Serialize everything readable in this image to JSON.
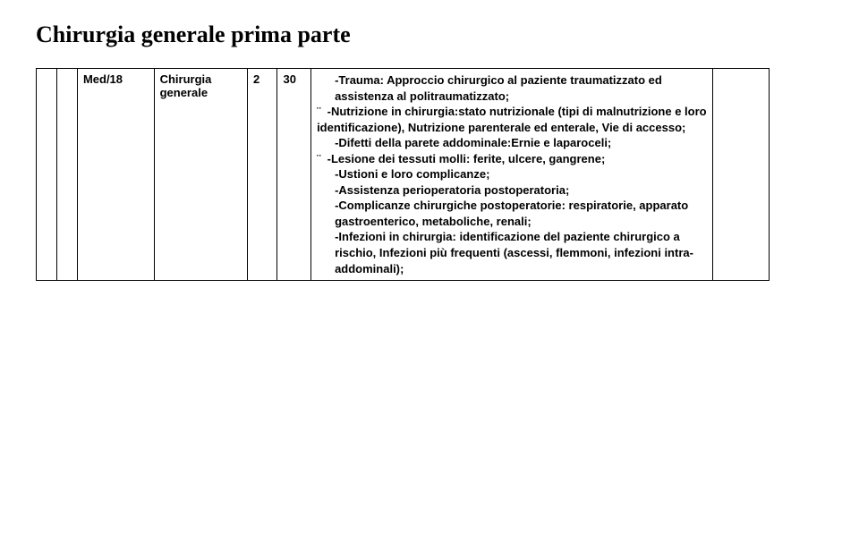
{
  "title": "Chirurgia generale prima parte",
  "table": {
    "code": "Med/18",
    "subject_line1": "Chirurgia",
    "subject_line2": "generale",
    "num1": "2",
    "num2": "30",
    "desc": {
      "l1_prefix": "-",
      "l1": "Trauma: Approccio chirurgico al paziente traumatizzato ed assistenza al politraumatizzato;",
      "l2_bullet": "¨",
      "l2": "-Nutrizione in chirurgia:stato nutrizionale (tipi di malnutrizione e loro identificazione), Nutrizione parenterale ed enterale, Vie di accesso;",
      "l3": "-Difetti della parete addominale:Ernie e laparoceli;",
      "l4_bullet": "¨",
      "l4": "-Lesione dei tessuti molli: ferite, ulcere, gangrene;",
      "l5": "-Ustioni e loro complicanze;",
      "l6": "-Assistenza perioperatoria postoperatoria;",
      "l7": "-Complicanze chirurgiche postoperatorie: respiratorie, apparato gastroenterico, metaboliche, renali;",
      "l8": "-Infezioni in chirurgia: identificazione del paziente chirurgico a rischio, Infezioni più frequenti (ascessi, flemmoni, infezioni intra-addominali);"
    }
  },
  "style": {
    "title_fontsize": 26,
    "body_fontsize": 13,
    "border_color": "#000000",
    "background": "#ffffff",
    "text_color": "#000000"
  }
}
